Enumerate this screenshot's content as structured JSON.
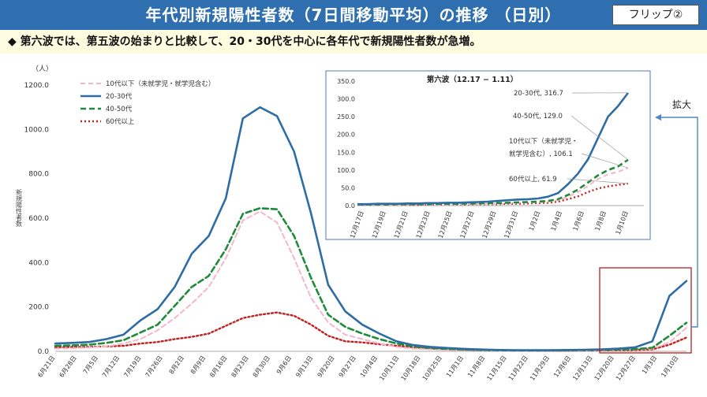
{
  "header": {
    "title": "年代別新規陽性者数（7日間移動平均）の推移 （日別）",
    "flip_label": "フリップ②"
  },
  "subtitle": "◆ 第六波では、第五波の始まりと比較して、20・30代を中心に各年代で新規陽性者数が急増。",
  "colors": {
    "header_bg": "#2f6fb0",
    "u10": "#f4b6c8",
    "g2030": "#2e6ca4",
    "g4050": "#1f8a3a",
    "g60": "#c0211f",
    "highlight": "#b22222",
    "arrow": "#4f86c6"
  },
  "chart_data": [
    {
      "type": "line",
      "ylabel": "新規陽性者数",
      "yunit": "（人）",
      "ylim": [
        0,
        1200
      ],
      "yticks": [
        "0.0",
        "200.0",
        "400.0",
        "600.0",
        "800.0",
        "1000.0",
        "1200.0"
      ],
      "x_labels": [
        "6月21日",
        "6月28日",
        "7月5日",
        "7月12日",
        "7月19日",
        "7月26日",
        "8月2日",
        "8月9日",
        "8月16日",
        "8月23日",
        "8月30日",
        "9月6日",
        "9月13日",
        "9月20日",
        "9月27日",
        "10月4日",
        "10月11日",
        "10月18日",
        "10月25日",
        "11月1日",
        "11月8日",
        "11月15日",
        "11月22日",
        "11月29日",
        "12月6日",
        "12月13日",
        "12月20日",
        "12月27日",
        "1月3日",
        "1月10日"
      ],
      "legend_position": "top-left",
      "series": [
        {
          "name": "10代以下（未就学児・就学児含む）",
          "style": "dashed",
          "values": [
            12,
            14,
            17,
            22,
            35,
            55,
            95,
            150,
            215,
            290,
            420,
            590,
            630,
            580,
            420,
            240,
            130,
            75,
            55,
            35,
            20,
            12,
            9,
            6,
            5,
            4,
            3,
            3,
            3,
            3,
            4,
            4,
            5,
            6,
            8,
            12,
            40,
            106
          ]
        },
        {
          "name": "20-30代",
          "style": "solid",
          "values": [
            35,
            38,
            42,
            55,
            75,
            140,
            190,
            290,
            440,
            520,
            690,
            1050,
            1100,
            1060,
            900,
            620,
            300,
            180,
            120,
            80,
            45,
            28,
            20,
            15,
            11,
            8,
            6,
            5,
            5,
            5,
            6,
            7,
            9,
            12,
            18,
            45,
            250,
            317
          ]
        },
        {
          "name": "40-50代",
          "style": "dashed",
          "values": [
            25,
            27,
            30,
            38,
            50,
            85,
            120,
            205,
            290,
            340,
            460,
            620,
            645,
            640,
            520,
            330,
            165,
            110,
            80,
            55,
            35,
            22,
            15,
            11,
            8,
            6,
            5,
            4,
            4,
            4,
            5,
            6,
            7,
            8,
            10,
            16,
            70,
            129
          ]
        },
        {
          "name": "60代以上",
          "style": "dotted",
          "values": [
            18,
            19,
            20,
            22,
            25,
            35,
            42,
            55,
            65,
            80,
            115,
            150,
            165,
            175,
            160,
            120,
            70,
            45,
            40,
            32,
            25,
            18,
            12,
            9,
            7,
            5,
            4,
            4,
            3,
            3,
            3,
            4,
            4,
            5,
            6,
            9,
            30,
            62
          ]
        }
      ]
    },
    {
      "type": "line",
      "title": "第六波（12.17 − 1.11）",
      "ylim": [
        0,
        350
      ],
      "yticks": [
        "0.0",
        "50.0",
        "100.0",
        "150.0",
        "200.0",
        "250.0",
        "300.0",
        "350.0"
      ],
      "x_labels": [
        "12月17日",
        "12月19日",
        "12月21日",
        "12月23日",
        "12月25日",
        "12月27日",
        "12月29日",
        "12月31日",
        "1月2日",
        "1月4日",
        "1月6日",
        "1月8日",
        "1月10日"
      ],
      "series": [
        {
          "name": "20-30代",
          "values": [
            4,
            4,
            5,
            5,
            5,
            6,
            6,
            7,
            7,
            8,
            8,
            9,
            10,
            11,
            13,
            15,
            17,
            18,
            20,
            25,
            35,
            60,
            90,
            130,
            190,
            250,
            280,
            317
          ]
        },
        {
          "name": "40-50代",
          "values": [
            3,
            3,
            3,
            3,
            4,
            4,
            4,
            4,
            5,
            5,
            5,
            6,
            6,
            7,
            7,
            8,
            9,
            10,
            11,
            13,
            18,
            30,
            45,
            65,
            85,
            100,
            110,
            129
          ]
        },
        {
          "name": "10代以下（未就学児・就学児含む）",
          "values": [
            2,
            2,
            2,
            2,
            2,
            3,
            3,
            3,
            3,
            3,
            4,
            4,
            4,
            5,
            5,
            6,
            7,
            8,
            9,
            11,
            15,
            25,
            38,
            55,
            75,
            88,
            95,
            106
          ]
        },
        {
          "name": "60代以上",
          "values": [
            2,
            2,
            2,
            2,
            2,
            2,
            2,
            3,
            3,
            3,
            3,
            3,
            4,
            4,
            4,
            5,
            5,
            6,
            7,
            8,
            11,
            18,
            26,
            38,
            48,
            54,
            58,
            62
          ]
        }
      ],
      "annotations": [
        {
          "text": "20-30代, 316.7"
        },
        {
          "text": "40-50代, 129.0"
        },
        {
          "text": "10代以下（未就学児・"
        },
        {
          "text": "就学児含む）, 106.1"
        },
        {
          "text": "60代以上, 61.9"
        }
      ]
    }
  ],
  "zoom_label": "拡大"
}
